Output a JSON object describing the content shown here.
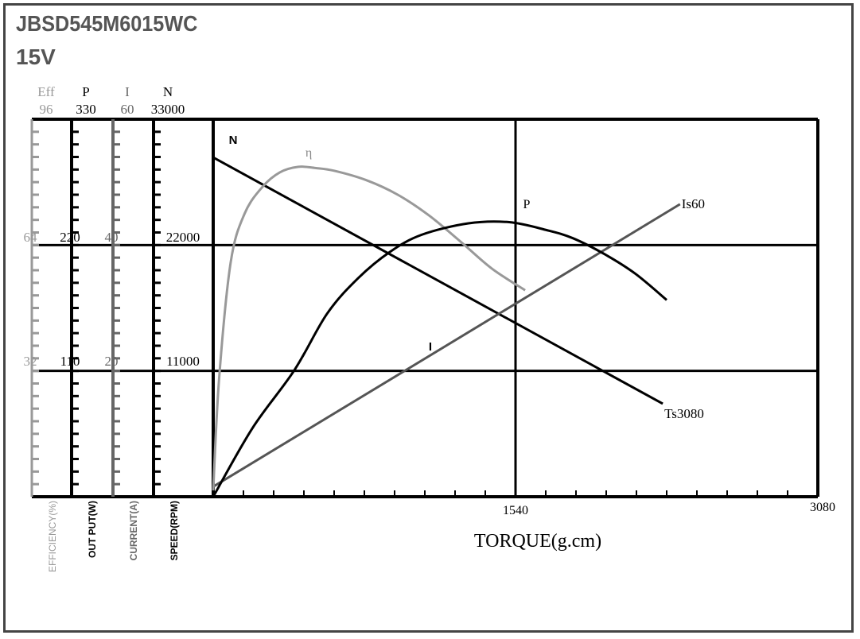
{
  "header": {
    "model": "JBSD545M6015WC",
    "voltage": "15V"
  },
  "chart_data": {
    "type": "line",
    "xlabel": "TORQUE(g.cm)",
    "xlim": [
      0,
      3080
    ],
    "x_ticks": [
      "1540",
      "3080"
    ],
    "grid": true,
    "axes": [
      {
        "key": "eff",
        "symbol": "Eff",
        "label": "EFFICIENCY(%)",
        "max": 96,
        "ticks": [
          "96",
          "64",
          "32"
        ],
        "color": "#999999"
      },
      {
        "key": "p",
        "symbol": "P",
        "label": "OUT PUT(W)",
        "max": 330,
        "ticks": [
          "330",
          "220",
          "110"
        ],
        "color": "#000000"
      },
      {
        "key": "i",
        "symbol": "I",
        "label": "CURRENT(A)",
        "max": 60,
        "ticks": [
          "60",
          "40",
          "20"
        ],
        "color": "#666666"
      },
      {
        "key": "n",
        "symbol": "N",
        "label": "SPEED(RPM)",
        "max": 33000,
        "ticks": [
          "33000",
          "22000",
          "11000"
        ],
        "color": "#000000"
      }
    ],
    "series": [
      {
        "name": "N",
        "axis": "n",
        "color": "#000000",
        "end_label": "Ts3080",
        "points": [
          [
            0,
            29660
          ],
          [
            2290,
            8130
          ]
        ]
      },
      {
        "name": "I",
        "axis": "i",
        "color": "#555555",
        "end_label": "Is60",
        "points": [
          [
            0,
            1.6
          ],
          [
            2378,
            46.5
          ]
        ]
      },
      {
        "name": "η",
        "axis": "eff",
        "color": "#999999",
        "points": [
          [
            0,
            1.6
          ],
          [
            30,
            30
          ],
          [
            89,
            59.6
          ],
          [
            160,
            72
          ],
          [
            251,
            78.8
          ],
          [
            340,
            82.5
          ],
          [
            434,
            83.9
          ],
          [
            520,
            83.6
          ],
          [
            616,
            82.9
          ],
          [
            780,
            80.5
          ],
          [
            940,
            76.8
          ],
          [
            1100,
            71.5
          ],
          [
            1264,
            64.7
          ],
          [
            1420,
            58
          ],
          [
            1589,
            52.5
          ]
        ]
      },
      {
        "name": "P",
        "axis": "p",
        "color": "#000000",
        "points": [
          [
            0,
            0
          ],
          [
            200,
            60
          ],
          [
            413,
            110.5
          ],
          [
            580,
            160
          ],
          [
            738,
            191
          ],
          [
            900,
            214
          ],
          [
            1062,
            229
          ],
          [
            1300,
            239
          ],
          [
            1508,
            240
          ],
          [
            1700,
            233
          ],
          [
            1832,
            226
          ],
          [
            1994,
            212
          ],
          [
            2150,
            195
          ],
          [
            2310,
            172
          ]
        ]
      }
    ]
  }
}
